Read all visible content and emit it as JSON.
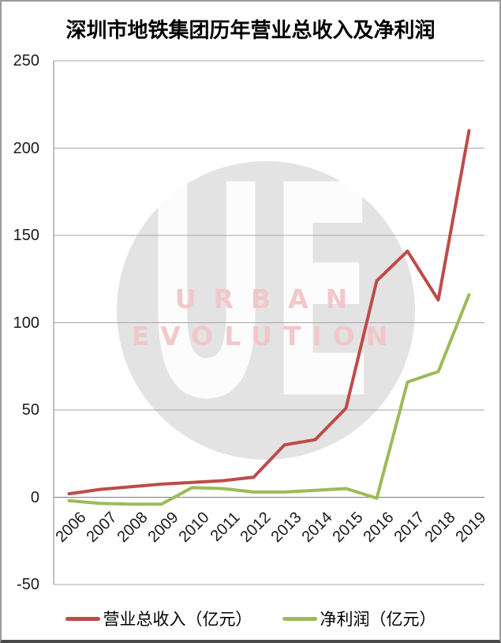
{
  "title": "深圳市地铁集团历年营业总收入及净利润",
  "watermark": {
    "monogram": "UE",
    "line1": "URBAN",
    "line2": "EVOLUTION",
    "circle_color": "#E3E3E3",
    "text_color": "#F3C6C9"
  },
  "chart_data": {
    "type": "line",
    "title": "深圳市地铁集团历年营业总收入及净利润",
    "categories": [
      "2006",
      "2007",
      "2008",
      "2009",
      "2010",
      "2011",
      "2012",
      "2013",
      "2014",
      "2015",
      "2016",
      "2017",
      "2018",
      "2019"
    ],
    "series": [
      {
        "name": "营业总收入（亿元）",
        "color": "#BE4B48",
        "values": [
          2,
          4.5,
          6,
          7.5,
          8.5,
          9.5,
          11.5,
          30,
          33,
          51,
          124,
          141,
          113,
          210
        ]
      },
      {
        "name": "净利润（亿元）",
        "color": "#9BBB59",
        "values": [
          -2,
          -3.5,
          -4,
          -4,
          5.5,
          5,
          3,
          3,
          4,
          5,
          -0.5,
          66,
          72,
          116
        ]
      }
    ],
    "xlabel": "",
    "ylabel": "",
    "ylim": [
      -50,
      250
    ],
    "yticks": [
      250,
      200,
      150,
      100,
      50,
      0,
      -50
    ],
    "grid": true,
    "legend_position": "bottom",
    "colors": {
      "gridline": "#A6A6A6",
      "axis": "#808080"
    }
  }
}
